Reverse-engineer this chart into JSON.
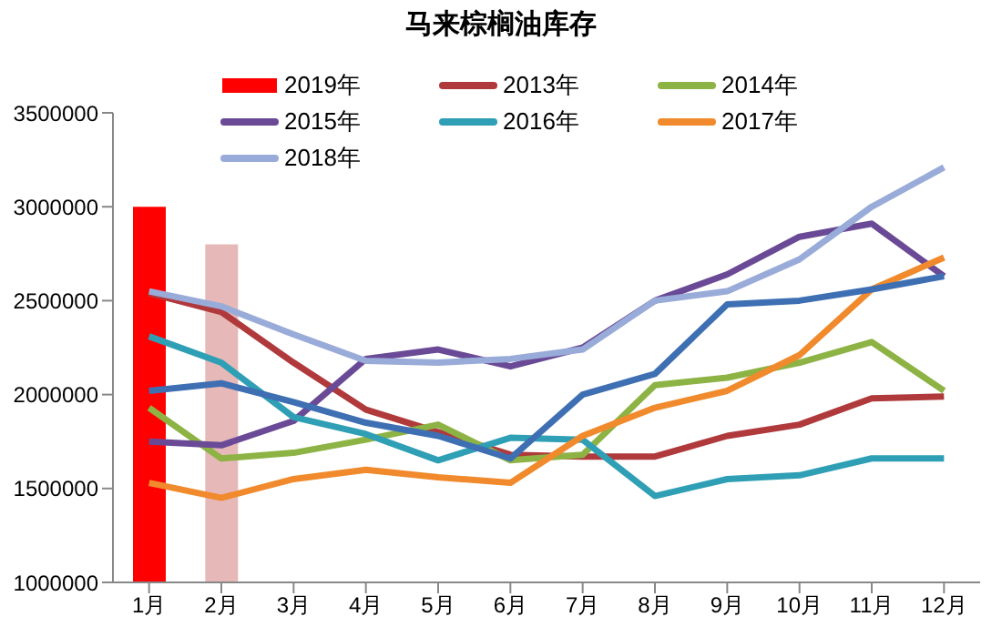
{
  "chart_data": {
    "type": "line",
    "title": "马来棕榈油库存",
    "categories": [
      "1月",
      "2月",
      "3月",
      "4月",
      "5月",
      "6月",
      "7月",
      "8月",
      "9月",
      "10月",
      "11月",
      "12月"
    ],
    "series": [
      {
        "name": "2019年",
        "type": "bar",
        "color": "#ff0000",
        "colors": [
          "#ff0000",
          "#e6b9b8",
          null,
          null,
          null,
          null,
          null,
          null,
          null,
          null,
          null,
          null
        ],
        "values": [
          3000000,
          2800000,
          null,
          null,
          null,
          null,
          null,
          null,
          null,
          null,
          null,
          null
        ]
      },
      {
        "name": "2013年",
        "color": "#b0393b",
        "values": [
          2540000,
          2440000,
          2170000,
          1920000,
          1800000,
          1680000,
          1670000,
          1670000,
          1780000,
          1840000,
          1980000,
          1990000
        ]
      },
      {
        "name": "2014年",
        "color": "#8db344",
        "values": [
          1930000,
          1660000,
          1690000,
          1760000,
          1840000,
          1650000,
          1680000,
          2050000,
          2090000,
          2170000,
          2280000,
          2020000
        ]
      },
      {
        "name": "2015年",
        "color": "#6a4a96",
        "values": [
          1750000,
          1730000,
          1860000,
          2190000,
          2240000,
          2150000,
          2250000,
          2500000,
          2640000,
          2840000,
          2910000,
          2630000
        ]
      },
      {
        "name": "2016年",
        "color": "#2f9fb5",
        "values": [
          2310000,
          2170000,
          1880000,
          1790000,
          1650000,
          1770000,
          1760000,
          1460000,
          1550000,
          1570000,
          1660000,
          1660000
        ]
      },
      {
        "name": "2017年",
        "color": "#f08a2c",
        "values": [
          1530000,
          1450000,
          1550000,
          1600000,
          1560000,
          1530000,
          1780000,
          1930000,
          2020000,
          2210000,
          2560000,
          2730000
        ]
      },
      {
        "name": "2018年",
        "color": "#99abd8",
        "values": [
          2550000,
          2470000,
          2320000,
          2180000,
          2170000,
          2190000,
          2240000,
          2500000,
          2550000,
          2720000,
          3000000,
          3210000
        ]
      },
      {
        "color": "#3e6fb3",
        "values": [
          2020000,
          2060000,
          1960000,
          1850000,
          1780000,
          1660000,
          2000000,
          2110000,
          2480000,
          2500000,
          2560000,
          2630000
        ]
      }
    ],
    "ylim": [
      1000000,
      3500000
    ],
    "yticks": [
      1000000,
      1500000,
      2000000,
      2500000,
      3000000,
      3500000
    ],
    "grid": false,
    "legend": "top",
    "marker": "none",
    "line_style": "solid"
  }
}
